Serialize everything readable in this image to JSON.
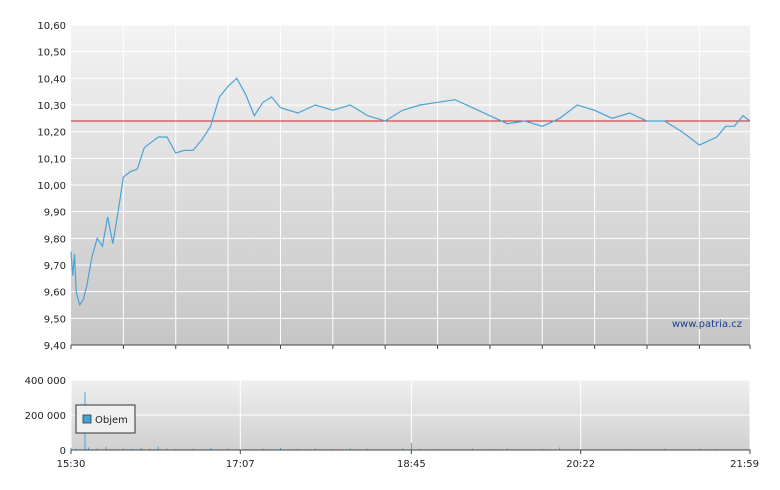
{
  "watermark": "www.patria.cz",
  "colors": {
    "price_line": "#4aa3d6",
    "reference_line": "#cc2222",
    "volume_bars": "#4aa3d6",
    "grid": "#ffffff",
    "plot_bg_top": "#f2f2f2",
    "plot_bg_bottom": "#c8c8c8"
  },
  "chart_data": [
    {
      "type": "line",
      "title": "",
      "xlabel": "",
      "ylabel": "",
      "x_range": [
        "15:30",
        "21:59"
      ],
      "ylim": [
        9.4,
        10.6
      ],
      "grid": true,
      "y_ticks": [
        "10,60",
        "10,50",
        "10,40",
        "10,30",
        "10,20",
        "10,10",
        "10,00",
        "9,90",
        "9,80",
        "9,70",
        "9,60",
        "9,50",
        "9,40"
      ],
      "reference_value": 10.24,
      "series": [
        {
          "name": "",
          "x": [
            "15:30",
            "15:31",
            "15:32",
            "15:33",
            "15:35",
            "15:37",
            "15:39",
            "15:42",
            "15:45",
            "15:48",
            "15:51",
            "15:54",
            "15:57",
            "16:00",
            "16:04",
            "16:08",
            "16:12",
            "16:16",
            "16:20",
            "16:25",
            "16:30",
            "16:35",
            "16:40",
            "16:45",
            "16:50",
            "16:55",
            "17:00",
            "17:05",
            "17:10",
            "17:15",
            "17:20",
            "17:25",
            "17:30",
            "17:40",
            "17:50",
            "18:00",
            "18:10",
            "18:20",
            "18:30",
            "18:40",
            "18:50",
            "19:00",
            "19:10",
            "19:20",
            "19:30",
            "19:40",
            "19:50",
            "20:00",
            "20:10",
            "20:20",
            "20:30",
            "20:40",
            "20:50",
            "21:00",
            "21:10",
            "21:20",
            "21:30",
            "21:40",
            "21:45",
            "21:50",
            "21:55",
            "21:59"
          ],
          "values": [
            9.75,
            9.66,
            9.74,
            9.6,
            9.55,
            9.57,
            9.62,
            9.73,
            9.8,
            9.77,
            9.88,
            9.78,
            9.9,
            10.03,
            10.05,
            10.06,
            10.14,
            10.16,
            10.18,
            10.18,
            10.12,
            10.13,
            10.13,
            10.17,
            10.22,
            10.33,
            10.37,
            10.4,
            10.34,
            10.26,
            10.31,
            10.33,
            10.29,
            10.27,
            10.3,
            10.28,
            10.3,
            10.26,
            10.24,
            10.28,
            10.3,
            10.31,
            10.32,
            10.29,
            10.26,
            10.23,
            10.24,
            10.22,
            10.25,
            10.3,
            10.28,
            10.25,
            10.27,
            10.24,
            10.24,
            10.2,
            10.15,
            10.18,
            10.22,
            10.22,
            10.26,
            10.24
          ]
        }
      ]
    },
    {
      "type": "bar",
      "title": "",
      "xlabel": "",
      "ylabel": "",
      "ylim": [
        0,
        400000
      ],
      "y_ticks": [
        "400 000",
        "200 000",
        "0"
      ],
      "x_ticks": [
        "15:30",
        "17:07",
        "18:45",
        "20:22",
        "21:59"
      ],
      "series": [
        {
          "name": "Objem",
          "x": [
            "15:30",
            "15:33",
            "15:35",
            "15:38",
            "15:40",
            "15:45",
            "15:50",
            "15:55",
            "16:00",
            "16:05",
            "16:10",
            "16:15",
            "16:20",
            "16:25",
            "16:30",
            "16:40",
            "16:50",
            "17:00",
            "17:10",
            "17:20",
            "17:30",
            "17:40",
            "17:50",
            "18:00",
            "18:10",
            "18:20",
            "18:30",
            "18:40",
            "18:45",
            "18:50",
            "19:00",
            "19:10",
            "19:20",
            "19:30",
            "19:40",
            "19:50",
            "20:00",
            "20:10",
            "20:20",
            "20:30",
            "20:40",
            "20:50",
            "21:00",
            "21:10",
            "21:20",
            "21:30",
            "21:40",
            "21:50",
            "21:59"
          ],
          "values": [
            12000,
            8000,
            5000,
            330000,
            15000,
            9000,
            18000,
            6000,
            10000,
            7000,
            12000,
            8000,
            20000,
            9000,
            6000,
            7000,
            11000,
            9000,
            6000,
            8000,
            12000,
            7000,
            9000,
            6000,
            10000,
            8000,
            5000,
            9000,
            40000,
            7000,
            6000,
            5000,
            8000,
            6000,
            9000,
            5000,
            7000,
            15000,
            6000,
            5000,
            4000,
            6000,
            5000,
            7000,
            4000,
            8000,
            6000,
            5000,
            4000
          ]
        }
      ]
    }
  ]
}
